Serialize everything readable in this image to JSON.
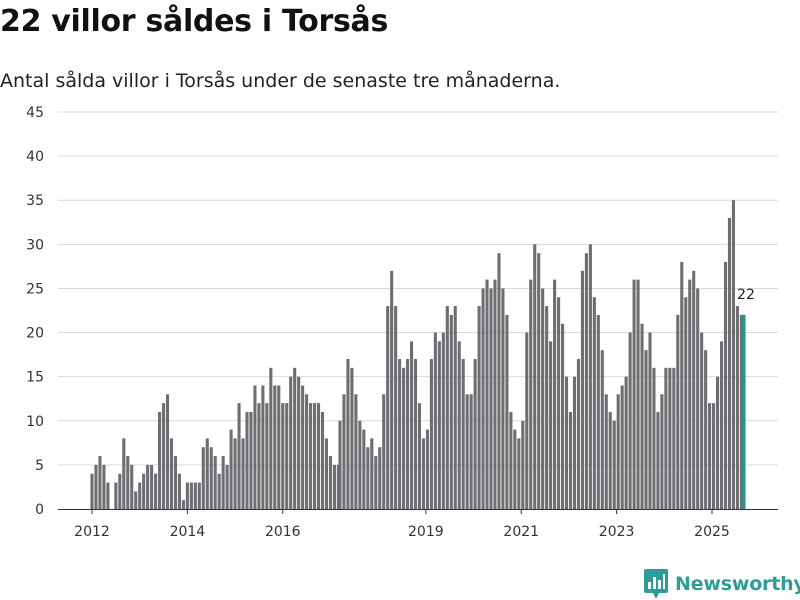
{
  "header": {
    "title": "22 villor såldes i Torsås",
    "subtitle": "Antal sålda villor i Torsås under de senaste tre månaderna."
  },
  "brand": {
    "name": "Newsworthy",
    "icon": "newsworthy-logo-icon",
    "color": "#2f9c97"
  },
  "colors": {
    "bar": "#6e6d72",
    "highlight": "#1a9a8e",
    "grid": "#d9d9d9",
    "axis": "#333333"
  },
  "chart_data": {
    "type": "bar",
    "title": "22 villor såldes i Torsås",
    "subtitle": "Antal sålda villor i Torsås under de senaste tre månaderna.",
    "xlabel": "",
    "ylabel": "",
    "ylim": [
      0,
      45
    ],
    "yticks": [
      0,
      5,
      10,
      15,
      20,
      25,
      30,
      35,
      40,
      45
    ],
    "grid": true,
    "legend": "none",
    "xaxis": {
      "range": [
        2011.3,
        2025.95
      ],
      "ticks": [
        {
          "value": 2012,
          "label": "2012"
        },
        {
          "value": 2014,
          "label": "2014"
        },
        {
          "value": 2016,
          "label": "2016"
        },
        {
          "value": 2019,
          "label": "2019"
        },
        {
          "value": 2021,
          "label": "2021"
        },
        {
          "value": 2023,
          "label": "2023"
        },
        {
          "value": 2025,
          "label": "2025"
        }
      ]
    },
    "bar_interval": 0.08333,
    "series": [
      {
        "name": "Antal sålda villor",
        "start": 2012.0,
        "values": [
          4,
          5,
          6,
          5,
          3,
          0,
          3,
          4,
          8,
          6,
          5,
          2,
          3,
          4,
          5,
          5,
          4,
          11,
          12,
          13,
          8,
          6,
          4,
          1
        ]
      },
      {
        "name": "Antal sålda villor",
        "start": 2014.0,
        "values": [
          3,
          3,
          3,
          3,
          7,
          8,
          7,
          6,
          4,
          6,
          5,
          9,
          8,
          12,
          8,
          11,
          11,
          14,
          12,
          14,
          12,
          16,
          14,
          14,
          12,
          12,
          15,
          16,
          15,
          14,
          13,
          12,
          12,
          12,
          11,
          8,
          6,
          5,
          5
        ]
      },
      {
        "name": "Antal sålda villor",
        "start": 2017.2,
        "values": [
          10,
          13,
          17,
          16,
          13,
          10,
          9,
          7,
          8,
          6,
          7,
          13,
          23,
          27,
          23,
          17,
          16,
          17,
          19,
          17,
          12,
          8,
          9,
          17,
          20,
          19,
          20,
          23,
          22,
          23,
          19,
          17,
          13,
          13,
          17,
          23,
          25,
          26,
          25,
          26,
          29,
          25,
          22,
          11,
          9,
          8,
          10,
          20,
          26,
          30,
          29,
          25,
          23,
          19,
          26,
          24,
          21,
          15,
          11,
          15,
          17,
          27,
          29,
          30,
          24,
          22,
          18,
          13,
          11,
          10,
          13,
          14,
          15,
          20,
          26,
          26,
          21,
          18,
          20,
          16,
          11,
          13,
          16,
          16,
          16,
          22,
          28,
          24,
          26,
          27,
          25,
          20,
          18,
          12,
          12,
          15,
          19,
          28,
          33,
          35,
          23,
          22
        ]
      }
    ],
    "highlight": {
      "x": 2025.67,
      "value": 22,
      "label": "22"
    }
  }
}
